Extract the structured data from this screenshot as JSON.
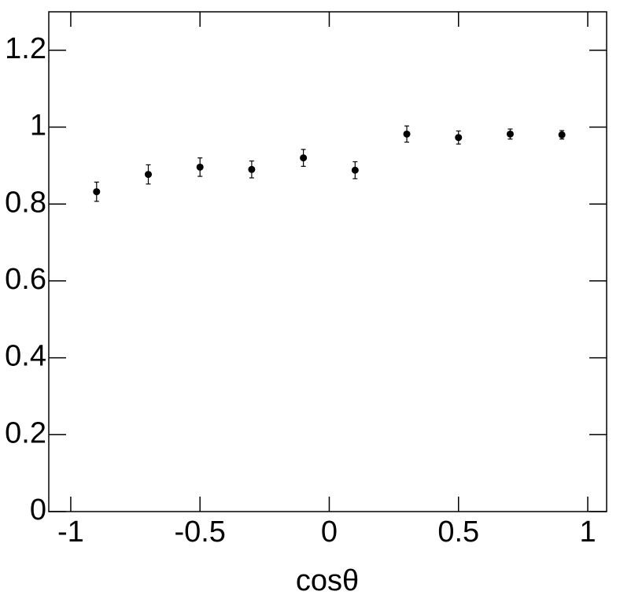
{
  "chart_data": {
    "type": "scatter",
    "x_label": "cosθ",
    "x": [
      -0.9,
      -0.7,
      -0.5,
      -0.3,
      -0.1,
      0.1,
      0.3,
      0.5,
      0.7,
      0.9
    ],
    "values": [
      0.832,
      0.877,
      0.896,
      0.89,
      0.92,
      0.888,
      0.982,
      0.973,
      0.982,
      0.98
    ],
    "errors": [
      0.025,
      0.025,
      0.024,
      0.022,
      0.022,
      0.022,
      0.021,
      0.017,
      0.013,
      0.011
    ],
    "color": "#000000",
    "xlim": [
      -1.085,
      1.073
    ],
    "xticks": [
      -1,
      -0.5,
      0,
      0.5,
      1
    ],
    "ylim": [
      0,
      1.3
    ],
    "yticks": [
      0,
      0.2,
      0.4,
      0.6,
      0.8,
      1,
      1.2
    ]
  }
}
